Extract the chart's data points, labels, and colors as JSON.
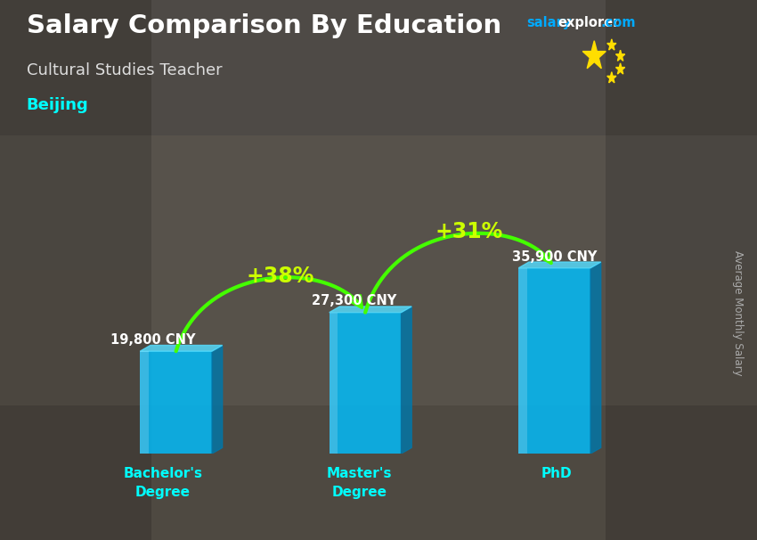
{
  "title": "Salary Comparison By Education",
  "subtitle": "Cultural Studies Teacher",
  "location": "Beijing",
  "ylabel": "Average Monthly Salary",
  "categories": [
    "Bachelor's\nDegree",
    "Master's\nDegree",
    "PhD"
  ],
  "values": [
    19800,
    27300,
    35900
  ],
  "value_labels": [
    "19,800 CNY",
    "27,300 CNY",
    "35,900 CNY"
  ],
  "pct_labels": [
    "+38%",
    "+31%"
  ],
  "bar_color_main": "#00BFFF",
  "bar_color_dark": "#0077AA",
  "bar_color_top": "#55DDFF",
  "bar_alpha": 0.82,
  "arrow_color": "#44FF00",
  "pct_color": "#CCFF00",
  "title_color": "#FFFFFF",
  "subtitle_color": "#DDDDDD",
  "location_color": "#00FFFF",
  "watermark_salary_color": "#00AAFF",
  "watermark_explorer_color": "#FFFFFF",
  "watermark_com_color": "#00AAFF",
  "value_label_color": "#FFFFFF",
  "ylabel_color": "#AAAAAA",
  "xtick_color": "#00FFFF",
  "bg_color": "#7a6a55",
  "overlay_color": "#000000",
  "overlay_alpha": 0.35,
  "bar_width": 0.38,
  "x_positions": [
    1.0,
    2.0,
    3.0
  ],
  "xlim": [
    0.35,
    3.75
  ],
  "ylim_factor": 1.6,
  "figsize": [
    8.5,
    6.06
  ],
  "dpi": 100
}
